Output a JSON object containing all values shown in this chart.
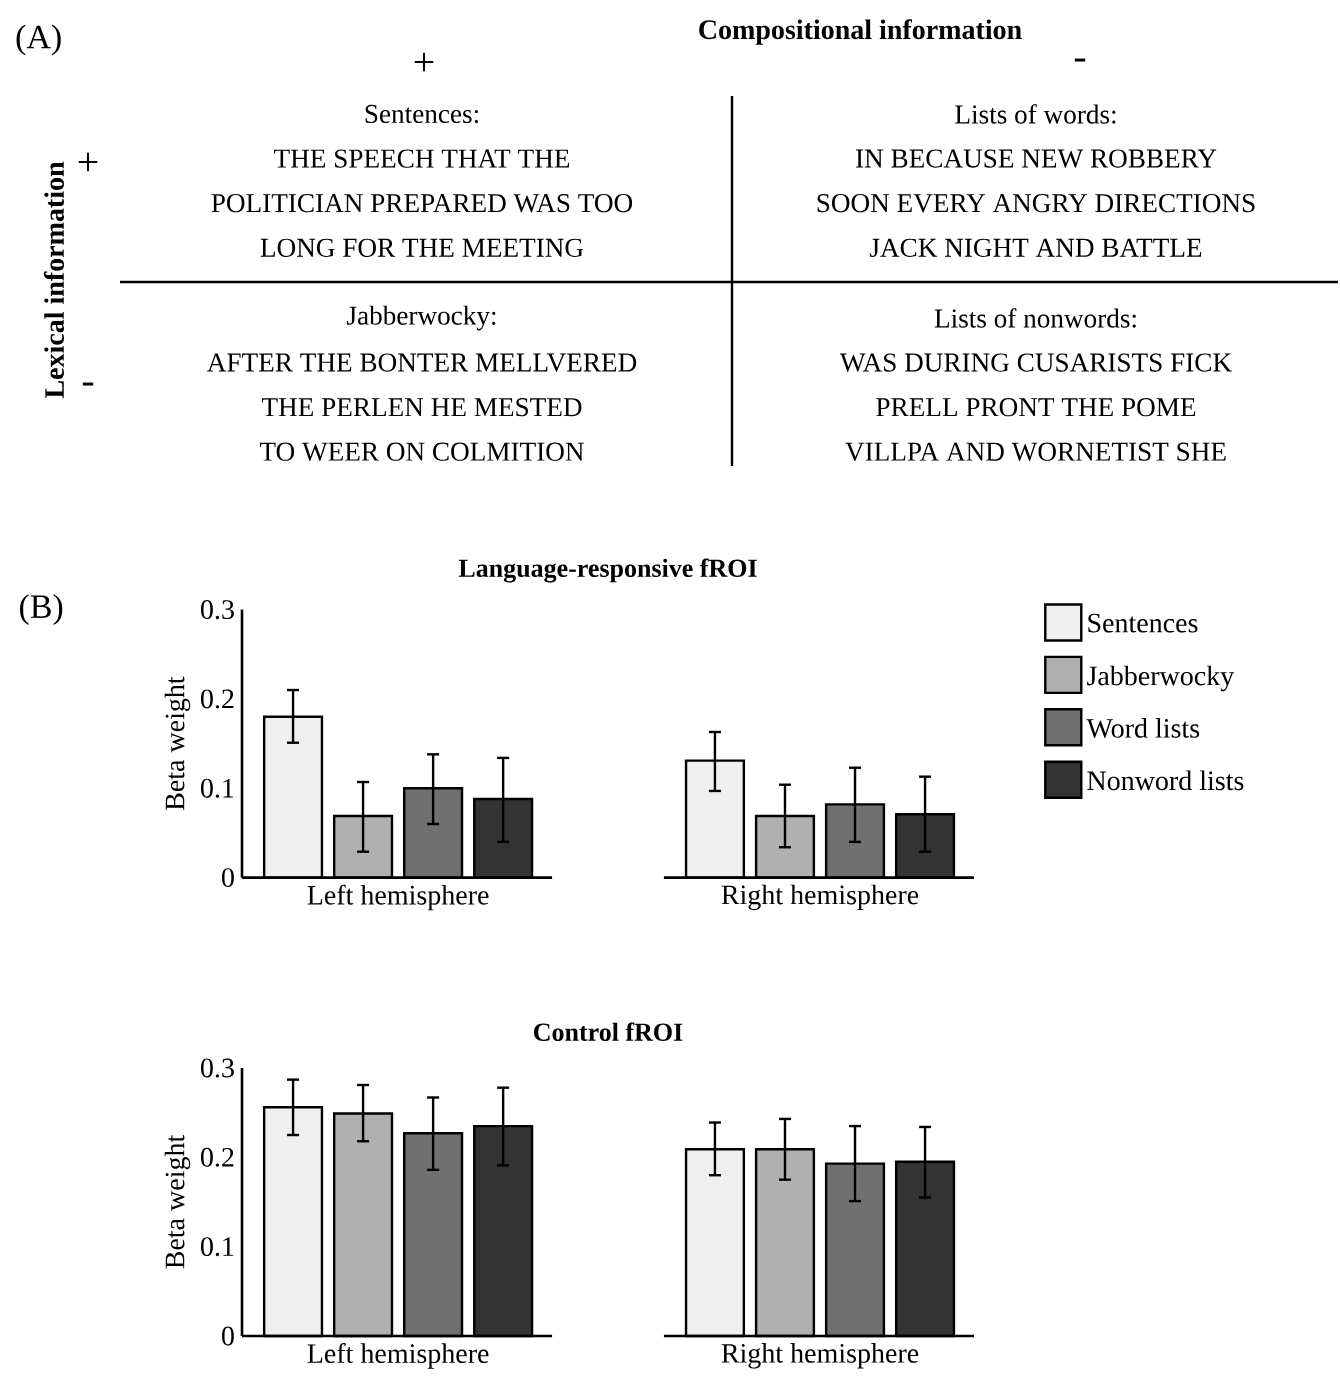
{
  "chart_data": [
    {
      "type": "other",
      "title": "Compositional information",
      "ylabel": "Lexical information",
      "categories": [
        "+",
        "-"
      ],
      "y_categories": [
        "+",
        "-"
      ],
      "annotations": [
        "(A)",
        "Sentences:",
        "THE SPEECH THAT THE",
        "POLITICIAN PREPARED WAS TOO",
        "LONG FOR THE MEETING",
        "Lists of words:",
        "IN BECAUSE NEW ROBBERY",
        "SOON EVERY ANGRY DIRECTIONS",
        "JACK NIGHT AND BATTLE",
        "Jabberwocky:",
        "AFTER THE BONTER MELLVERED",
        "THE PERLEN HE MESTED",
        "TO WEER ON COLMITION",
        "Lists of nonwords:",
        "WAS DURING CUSARISTS FICK",
        "PRELL PRONT THE POME",
        "VILLPA AND WORNETIST SHE"
      ]
    },
    {
      "type": "bar",
      "title": "Language-responsive fROI",
      "ylabel": "Beta weight",
      "categories": [
        "Left hemisphere",
        "Right hemisphere"
      ],
      "ylim": [
        0,
        0.3
      ],
      "yticks": [
        0,
        0.1,
        0.2,
        0.3
      ],
      "legend": "right",
      "annotations": [
        "(B)"
      ],
      "series": [
        {
          "name": "Sentences",
          "color": "#efefef",
          "values": [
            0.18,
            0.131
          ],
          "errors": [
            [
              0.151,
              0.21
            ],
            [
              0.097,
              0.163
            ]
          ]
        },
        {
          "name": "Jabberwocky",
          "color": "#b0b0b0",
          "values": [
            0.069,
            0.069
          ],
          "errors": [
            [
              0.029,
              0.107
            ],
            [
              0.034,
              0.104
            ]
          ]
        },
        {
          "name": "Word lists",
          "color": "#707070",
          "values": [
            0.1,
            0.082
          ],
          "errors": [
            [
              0.06,
              0.138
            ],
            [
              0.04,
              0.123
            ]
          ]
        },
        {
          "name": "Nonword lists",
          "color": "#333333",
          "values": [
            0.088,
            0.071
          ],
          "errors": [
            [
              0.04,
              0.134
            ],
            [
              0.029,
              0.113
            ]
          ]
        }
      ]
    },
    {
      "type": "bar",
      "title": "Control fROI",
      "ylabel": "Beta weight",
      "categories": [
        "Left hemisphere",
        "Right hemisphere"
      ],
      "ylim": [
        0,
        0.3
      ],
      "yticks": [
        0,
        0.1,
        0.2,
        0.3
      ],
      "series": [
        {
          "color": "#efefef",
          "values": [
            0.256,
            0.209
          ],
          "errors": [
            [
              0.225,
              0.287
            ],
            [
              0.18,
              0.239
            ]
          ]
        },
        {
          "color": "#b0b0b0",
          "values": [
            0.249,
            0.209
          ],
          "errors": [
            [
              0.218,
              0.281
            ],
            [
              0.175,
              0.243
            ]
          ]
        },
        {
          "color": "#707070",
          "values": [
            0.227,
            0.193
          ],
          "errors": [
            [
              0.186,
              0.267
            ],
            [
              0.151,
              0.235
            ]
          ]
        },
        {
          "color": "#333333",
          "values": [
            0.235,
            0.195
          ],
          "errors": [
            [
              0.191,
              0.278
            ],
            [
              0.155,
              0.234
            ]
          ]
        }
      ]
    }
  ]
}
